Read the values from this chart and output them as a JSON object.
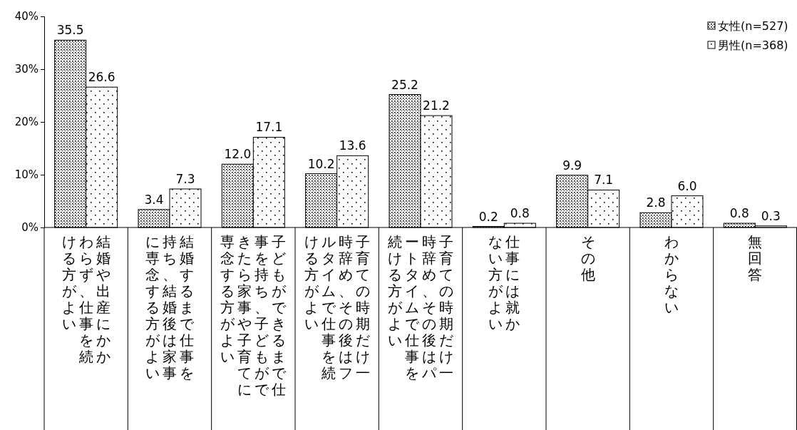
{
  "chart_data": {
    "type": "bar",
    "categories": [
      "結婚や出産にかかわらず、仕事を続ける方がよい",
      "結婚するまで仕事を持ち、結婚後は家事に専念する方がよい",
      "子どもができるまで仕事を持ち、子どもができたら家事や子育てに専念する方がよい",
      "子育ての時期だけ一時辞め、その後はフルタイムで仕事を続ける方がよい",
      "子育ての時期だけ一時辞め、その後はパートタイムで仕事を続ける方がよい",
      "仕事には就かない方がよい",
      "その他",
      "わからない",
      "無回答"
    ],
    "series": [
      {
        "name": "女性(n=527)",
        "color": "#000000",
        "values": [
          35.5,
          3.4,
          12.0,
          10.2,
          25.2,
          0.2,
          9.9,
          2.8,
          0.8
        ],
        "value_labels": [
          "35.5",
          "3.4",
          "12.0",
          "10.2",
          "25.2",
          "0.2",
          "9.9",
          "2.8",
          "0.8"
        ]
      },
      {
        "name": "男性(n=368)",
        "color": "#000000",
        "values": [
          26.6,
          7.3,
          17.1,
          13.6,
          21.2,
          0.8,
          7.1,
          6.0,
          0.3
        ],
        "value_labels": [
          "26.6",
          "7.3",
          "17.1",
          "13.6",
          "21.2",
          "0.8",
          "7.1",
          "6.0",
          "0.3"
        ]
      }
    ],
    "ylim": [
      0,
      40
    ],
    "yticks": [
      {
        "value": 0,
        "label": "0%"
      },
      {
        "value": 10,
        "label": "10%"
      },
      {
        "value": 20,
        "label": "20%"
      },
      {
        "value": 30,
        "label": "30%"
      },
      {
        "value": 40,
        "label": "40%"
      }
    ],
    "grid": false,
    "legend": "top right"
  }
}
